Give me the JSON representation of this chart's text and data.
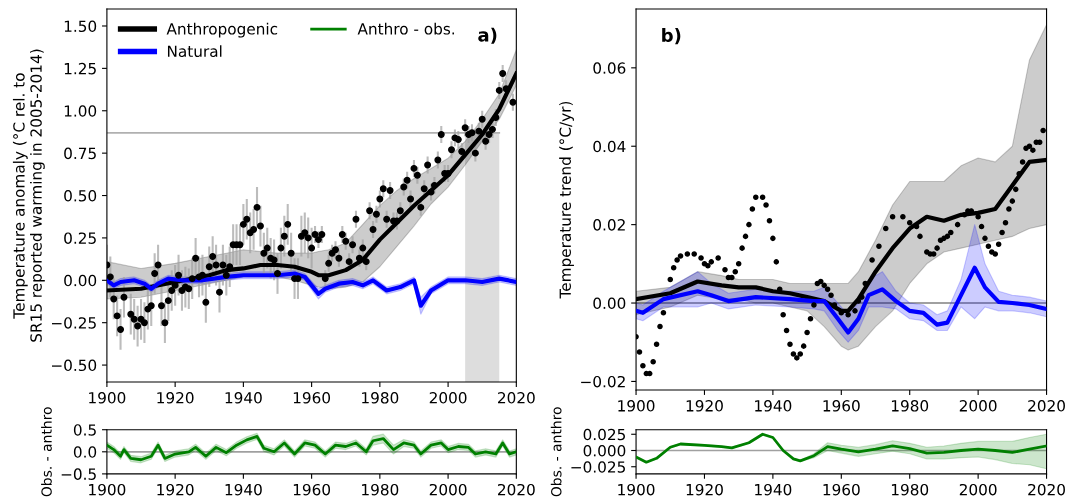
{
  "chart_data": [
    {
      "type": "line",
      "ylabel": "Temperature anomaly (°C rel. to\nSR15 reported warming in 2005-2014)",
      "xlim": [
        1900,
        2020
      ],
      "xticks": [
        1900,
        1920,
        1940,
        1960,
        1980,
        2000,
        2020
      ],
      "ylim": [
        -0.6,
        1.6
      ],
      "yticks": [
        {
          "value": -0.5,
          "label": "−0.50"
        },
        {
          "value": -0.25,
          "label": "−0.25"
        },
        {
          "value": 0,
          "label": "0.00"
        },
        {
          "value": 0.25,
          "label": "0.25"
        },
        {
          "value": 0.5,
          "label": "0.50"
        },
        {
          "value": 0.75,
          "label": "0.75"
        },
        {
          "value": 1.0,
          "label": "1.00"
        },
        {
          "value": 1.25,
          "label": "1.25"
        },
        {
          "value": 1.5,
          "label": "1.50"
        }
      ],
      "legend": "top left",
      "grid": false,
      "annotations": [
        "a)"
      ],
      "ref_lines": [
        {
          "axis": "y",
          "value": 0.87,
          "color": "#b0b0b0"
        }
      ],
      "bands": [
        {
          "axis": "x",
          "from": 2005,
          "to": 2015,
          "color": "#dddddd"
        }
      ],
      "series": [
        {
          "type": "scatter",
          "color": "#000000",
          "marker": "circle",
          "x": [
            1900,
            1901,
            1902,
            1903,
            1904,
            1905,
            1907,
            1908,
            1909,
            1910,
            1911,
            1912,
            1913,
            1914,
            1915,
            1916,
            1917,
            1918,
            1919,
            1920,
            1921,
            1922,
            1923,
            1924,
            1925,
            1926,
            1927,
            1928,
            1929,
            1930,
            1931,
            1932,
            1933,
            1934,
            1935,
            1936,
            1937,
            1938,
            1939,
            1940,
            1941,
            1942,
            1943,
            1944,
            1945,
            1946,
            1947,
            1948,
            1949,
            1950,
            1951,
            1952,
            1953,
            1954,
            1955,
            1956,
            1957,
            1958,
            1959,
            1960,
            1961,
            1962,
            1963,
            1964,
            1965,
            1966,
            1967,
            1968,
            1969,
            1970,
            1971,
            1972,
            1973,
            1974,
            1975,
            1976,
            1977,
            1978,
            1979,
            1980,
            1981,
            1982,
            1983,
            1984,
            1985,
            1986,
            1987,
            1988,
            1989,
            1990,
            1991,
            1992,
            1993,
            1994,
            1995,
            1996,
            1997,
            1998,
            1999,
            2000,
            2001,
            2002,
            2003,
            2004,
            2005,
            2006,
            2007,
            2008,
            2009,
            2010,
            2011,
            2012,
            2013,
            2014,
            2015,
            2016,
            2017,
            2019
          ],
          "values": [
            0.09,
            0.02,
            -0.11,
            -0.21,
            -0.29,
            -0.1,
            -0.2,
            -0.23,
            -0.27,
            -0.23,
            -0.25,
            -0.17,
            -0.15,
            0.04,
            0.09,
            -0.15,
            -0.25,
            -0.12,
            -0.06,
            -0.03,
            0.03,
            -0.06,
            -0.04,
            -0.05,
            0.01,
            0.13,
            0.02,
            0.03,
            -0.13,
            0.08,
            0.14,
            0.09,
            -0.07,
            0.09,
            0.03,
            0.08,
            0.21,
            0.21,
            0.21,
            0.33,
            0.36,
            0.28,
            0.3,
            0.43,
            0.32,
            0.16,
            0.19,
            0.13,
            0.12,
            0.04,
            0.19,
            0.26,
            0.33,
            0.16,
            0.01,
            0.01,
            0.26,
            0.28,
            0.25,
            0.19,
            0.27,
            0.24,
            0.27,
            0.01,
            0.1,
            0.16,
            0.18,
            0.13,
            0.27,
            0.23,
            0.11,
            0.21,
            0.36,
            0.13,
            0.19,
            0.11,
            0.41,
            0.3,
            0.39,
            0.48,
            0.54,
            0.36,
            0.53,
            0.35,
            0.35,
            0.41,
            0.55,
            0.59,
            0.48,
            0.66,
            0.62,
            0.43,
            0.54,
            0.68,
            0.52,
            0.56,
            0.71,
            0.86,
            0.63,
            0.63,
            0.77,
            0.84,
            0.83,
            0.76,
            0.9,
            0.86,
            0.87,
            0.75,
            0.88,
            0.95,
            0.82,
            0.86,
            0.89,
            0.96,
            1.12,
            1.22,
            1.13,
            1.05
          ],
          "errors": [
            0.12,
            0.12,
            0.12,
            0.12,
            0.12,
            0.12,
            0.12,
            0.12,
            0.12,
            0.12,
            0.12,
            0.12,
            0.12,
            0.12,
            0.12,
            0.12,
            0.12,
            0.12,
            0.12,
            0.12,
            0.12,
            0.12,
            0.12,
            0.12,
            0.12,
            0.12,
            0.12,
            0.12,
            0.12,
            0.12,
            0.12,
            0.12,
            0.12,
            0.12,
            0.12,
            0.12,
            0.12,
            0.12,
            0.12,
            0.12,
            0.12,
            0.12,
            0.12,
            0.12,
            0.12,
            0.12,
            0.12,
            0.12,
            0.12,
            0.12,
            0.12,
            0.12,
            0.12,
            0.12,
            0.12,
            0.12,
            0.12,
            0.12,
            0.12,
            0.12,
            0.05,
            0.05,
            0.05,
            0.05,
            0.05,
            0.05,
            0.05,
            0.05,
            0.05,
            0.05,
            0.05,
            0.05,
            0.05,
            0.05,
            0.05,
            0.05,
            0.05,
            0.05,
            0.05,
            0.05,
            0.05,
            0.05,
            0.05,
            0.05,
            0.05,
            0.05,
            0.05,
            0.05,
            0.05,
            0.05,
            0.05,
            0.05,
            0.05,
            0.05,
            0.05,
            0.05,
            0.05,
            0.05,
            0.05,
            0.05,
            0.05,
            0.05,
            0.05,
            0.05,
            0.05,
            0.05,
            0.05,
            0.05,
            0.05,
            0.05,
            0.05,
            0.05,
            0.05,
            0.05,
            0.05,
            0.05,
            0.05,
            0.05
          ]
        },
        {
          "name": "Anthropogenic",
          "color": "#000000",
          "x": [
            1900,
            1910,
            1920,
            1930,
            1935,
            1940,
            1945,
            1950,
            1955,
            1960,
            1962,
            1965,
            1970,
            1975,
            1980,
            1985,
            1990,
            1995,
            2000,
            2005,
            2010,
            2015,
            2020
          ],
          "values": [
            -0.06,
            -0.05,
            -0.01,
            0.03,
            0.06,
            0.07,
            0.09,
            0.09,
            0.08,
            0.05,
            0.03,
            0.03,
            0.06,
            0.12,
            0.24,
            0.34,
            0.44,
            0.53,
            0.62,
            0.74,
            0.86,
            1.01,
            1.22
          ],
          "lower": [
            -0.11,
            -0.1,
            -0.06,
            -0.02,
            0.0,
            0.02,
            0.02,
            0.02,
            0.0,
            -0.03,
            -0.04,
            -0.05,
            -0.04,
            -0.01,
            0.08,
            0.2,
            0.32,
            0.45,
            0.55,
            0.68,
            0.82,
            0.95,
            1.15
          ],
          "upper": [
            0.11,
            0.07,
            0.1,
            0.14,
            0.16,
            0.18,
            0.17,
            0.16,
            0.16,
            0.16,
            0.17,
            0.18,
            0.22,
            0.33,
            0.44,
            0.53,
            0.6,
            0.66,
            0.72,
            0.82,
            0.95,
            1.1,
            1.36
          ]
        },
        {
          "name": "Natural",
          "color": "#0000ff",
          "x": [
            1900,
            1902,
            1904,
            1908,
            1911,
            1913,
            1915,
            1918,
            1922,
            1928,
            1935,
            1940,
            1945,
            1950,
            1955,
            1958,
            1962,
            1964,
            1968,
            1972,
            1975,
            1978,
            1982,
            1986,
            1990,
            1992,
            1995,
            2000,
            2005,
            2010,
            2015,
            2020
          ],
          "values": [
            0.0,
            -0.03,
            -0.01,
            0.0,
            -0.02,
            -0.05,
            -0.02,
            0.01,
            0.0,
            0.0,
            0.02,
            0.03,
            0.03,
            0.03,
            0.04,
            0.02,
            -0.08,
            -0.05,
            -0.02,
            -0.01,
            -0.03,
            0.0,
            -0.06,
            -0.04,
            0.0,
            -0.15,
            -0.06,
            0.0,
            0.0,
            -0.01,
            0.01,
            -0.01
          ],
          "lower": [
            -0.02,
            -0.05,
            -0.03,
            -0.02,
            -0.04,
            -0.07,
            -0.04,
            -0.01,
            -0.02,
            -0.02,
            0.0,
            0.01,
            0.01,
            0.01,
            0.02,
            0.0,
            -0.11,
            -0.07,
            -0.04,
            -0.03,
            -0.05,
            -0.02,
            -0.08,
            -0.06,
            -0.02,
            -0.2,
            -0.08,
            -0.02,
            -0.02,
            -0.03,
            -0.01,
            -0.03
          ],
          "upper": [
            0.02,
            -0.01,
            0.01,
            0.02,
            0.0,
            -0.03,
            0.0,
            0.03,
            0.02,
            0.02,
            0.04,
            0.05,
            0.05,
            0.05,
            0.06,
            0.04,
            -0.05,
            -0.03,
            0.0,
            0.01,
            -0.01,
            0.02,
            -0.04,
            -0.02,
            0.02,
            -0.1,
            -0.04,
            0.02,
            0.02,
            0.01,
            0.03,
            0.01
          ]
        }
      ]
    },
    {
      "type": "line",
      "ylabel": "Temperature trend (°C/yr)",
      "xlim": [
        1900,
        2020
      ],
      "xticks": [
        1900,
        1920,
        1940,
        1960,
        1980,
        2000,
        2020
      ],
      "ylim": [
        -0.0222,
        0.075
      ],
      "yticks": [
        {
          "value": -0.02,
          "label": "−0.02"
        },
        {
          "value": 0,
          "label": "0.00"
        },
        {
          "value": 0.02,
          "label": "0.02"
        },
        {
          "value": 0.04,
          "label": "0.04"
        },
        {
          "value": 0.06,
          "label": "0.06"
        }
      ],
      "grid": false,
      "annotations": [
        "b)"
      ],
      "ref_lines": [
        {
          "axis": "y",
          "value": 0,
          "color": "#808080"
        }
      ],
      "series": [
        {
          "color": "#000000",
          "x": [
            1900,
            1910,
            1918,
            1925,
            1930,
            1935,
            1940,
            1945,
            1950,
            1955,
            1960,
            1962,
            1965,
            1970,
            1975,
            1980,
            1985,
            1990,
            1995,
            2000,
            2005,
            2010,
            2015,
            2020
          ],
          "values": [
            0.001,
            0.0025,
            0.0055,
            0.0045,
            0.004,
            0.004,
            0.003,
            0.0025,
            0.0015,
            0.0005,
            -0.002,
            -0.002,
            0.001,
            0.008,
            0.014,
            0.019,
            0.022,
            0.021,
            0.0225,
            0.023,
            0.024,
            0.03,
            0.036,
            0.0365
          ],
          "lower": [
            -0.003,
            -0.001,
            0.002,
            0.001,
            0.001,
            0.0,
            0.0,
            -0.001,
            -0.002,
            -0.006,
            -0.011,
            -0.012,
            -0.011,
            -0.006,
            -0.002,
            0.005,
            0.01,
            0.013,
            0.014,
            0.015,
            0.016,
            0.017,
            0.019,
            0.02
          ],
          "upper": [
            0.003,
            0.004,
            0.008,
            0.007,
            0.006,
            0.006,
            0.006,
            0.005,
            0.005,
            0.005,
            0.005,
            0.005,
            0.008,
            0.016,
            0.025,
            0.031,
            0.031,
            0.031,
            0.035,
            0.037,
            0.036,
            0.04,
            0.062,
            0.071
          ]
        },
        {
          "color": "#0000ff",
          "x": [
            1900,
            1902,
            1908,
            1918,
            1922,
            1927,
            1935,
            1945,
            1952,
            1955,
            1959,
            1962,
            1965,
            1968,
            1972,
            1976,
            1980,
            1984,
            1988,
            1991,
            1995,
            1999,
            2002,
            2006,
            2010,
            2015,
            2020
          ],
          "values": [
            -0.002,
            -0.0025,
            0.001,
            0.003,
            0.002,
            0.0005,
            0.0015,
            0.001,
            0.0005,
            0.0005,
            -0.004,
            -0.0075,
            -0.004,
            0.002,
            0.0035,
            0.0005,
            -0.002,
            -0.0025,
            -0.0055,
            -0.005,
            0.002,
            0.009,
            0.004,
            0.0003,
            0.0,
            -0.0005,
            -0.0015
          ],
          "lower": [
            -0.004,
            -0.0045,
            -0.001,
            -0.001,
            0.0,
            -0.0015,
            -0.0005,
            -0.001,
            -0.0015,
            -0.002,
            -0.007,
            -0.01,
            -0.007,
            -0.001,
            -0.001,
            -0.0015,
            -0.004,
            -0.0045,
            -0.007,
            -0.007,
            -0.001,
            -0.004,
            -0.001,
            -0.002,
            -0.002,
            -0.0025,
            -0.0035
          ],
          "upper": [
            0.0,
            -0.0005,
            0.003,
            0.008,
            0.005,
            0.0025,
            0.0035,
            0.003,
            0.003,
            0.004,
            0.0,
            -0.003,
            0.0,
            0.006,
            0.008,
            0.003,
            0.0,
            -0.0005,
            -0.003,
            -0.002,
            0.006,
            0.02,
            0.01,
            0.003,
            0.002,
            0.0015,
            0.0005
          ]
        },
        {
          "type": "scatter",
          "color": "#000000",
          "marker": "circle",
          "x": [
            1900,
            1901,
            1902,
            1903,
            1904,
            1905,
            1906,
            1907,
            1908,
            1910,
            1911,
            1912,
            1913,
            1915,
            1917,
            1919,
            1920,
            1921,
            1922,
            1924,
            1926,
            1927,
            1928,
            1929,
            1930,
            1931,
            1932,
            1933,
            1934,
            1935,
            1937,
            1938,
            1939,
            1940,
            1941,
            1942,
            1943,
            1944,
            1945,
            1946,
            1947,
            1948,
            1949,
            1950,
            1951,
            1952,
            1953,
            1954,
            1955,
            1956,
            1957,
            1958,
            1960,
            1962,
            1964,
            1965,
            1966,
            1967,
            1969,
            1971,
            1973,
            1975,
            1978,
            1980,
            1982,
            1983,
            1985,
            1986,
            1987,
            1988,
            1989,
            1990,
            1991,
            1992,
            1994,
            1996,
            1997,
            1998,
            2000,
            2001,
            2002,
            2003,
            2004,
            2005,
            2006,
            2007,
            2008,
            2009,
            2010,
            2011,
            2012,
            2013,
            2014,
            2015,
            2016,
            2017,
            2018,
            2019
          ],
          "values": [
            -0.0086,
            -0.0125,
            -0.016,
            -0.018,
            -0.018,
            -0.015,
            -0.0105,
            -0.006,
            -0.0025,
            0.006,
            0.009,
            0.011,
            0.012,
            0.0125,
            0.0125,
            0.0115,
            0.01,
            0.0095,
            0.0105,
            0.0115,
            0.0085,
            0.0065,
            0.0065,
            0.008,
            0.01,
            0.014,
            0.017,
            0.02,
            0.024,
            0.027,
            0.027,
            0.025,
            0.021,
            0.0165,
            0.0105,
            0.0035,
            -0.003,
            -0.007,
            -0.0105,
            -0.013,
            -0.014,
            -0.013,
            -0.011,
            -0.0075,
            -0.004,
            -0.0005,
            0.005,
            0.0055,
            0.0045,
            0.0035,
            0.002,
            -0.0005,
            -0.0025,
            -0.003,
            -0.002,
            0.0005,
            0.0015,
            0.005,
            0.011,
            0.0145,
            0.019,
            0.022,
            0.022,
            0.0205,
            0.0195,
            0.017,
            0.013,
            0.0125,
            0.0125,
            0.014,
            0.016,
            0.0165,
            0.017,
            0.018,
            0.02,
            0.0225,
            0.0235,
            0.0235,
            0.022,
            0.0195,
            0.0165,
            0.0145,
            0.013,
            0.0125,
            0.015,
            0.018,
            0.0205,
            0.024,
            0.026,
            0.029,
            0.033,
            0.036,
            0.0395,
            0.04,
            0.039,
            0.041,
            0.041,
            0.044
          ]
        }
      ]
    },
    {
      "type": "line",
      "ylabel": "Obs. - anthro",
      "xlim": [
        1900,
        2020
      ],
      "xticks": [
        1900,
        1920,
        1940,
        1960,
        1980,
        2000,
        2020
      ],
      "ylim": [
        -0.5,
        0.5
      ],
      "yticks": [
        {
          "value": -0.5,
          "label": "−0.5"
        },
        {
          "value": 0,
          "label": "0.0"
        },
        {
          "value": 0.5,
          "label": "0.5"
        }
      ],
      "grid": false,
      "ref_lines": [
        {
          "axis": "y",
          "value": 0,
          "color": "#a0a0a0"
        }
      ],
      "series": [
        {
          "name": "Anthro - obs.",
          "color": "#008000",
          "x": [
            1900,
            1902,
            1904,
            1905,
            1907,
            1910,
            1913,
            1915,
            1917,
            1920,
            1924,
            1926,
            1929,
            1932,
            1935,
            1938,
            1941,
            1944,
            1946,
            1949,
            1952,
            1955,
            1958,
            1961,
            1964,
            1967,
            1970,
            1973,
            1976,
            1978,
            1981,
            1984,
            1987,
            1990,
            1992,
            1995,
            1998,
            2000,
            2003,
            2006,
            2008,
            2011,
            2014,
            2016,
            2018,
            2020
          ],
          "values": [
            0.15,
            0.05,
            -0.1,
            0.05,
            -0.15,
            -0.18,
            -0.1,
            0.15,
            -0.15,
            -0.05,
            0.0,
            0.1,
            -0.1,
            0.1,
            -0.02,
            0.15,
            0.27,
            0.35,
            0.08,
            0.0,
            0.2,
            -0.05,
            0.2,
            0.15,
            -0.05,
            0.15,
            0.12,
            0.2,
            0.0,
            0.25,
            0.3,
            0.05,
            0.2,
            0.15,
            -0.05,
            0.15,
            0.2,
            0.05,
            0.12,
            0.1,
            -0.05,
            0.0,
            -0.05,
            0.2,
            -0.05,
            0.0
          ],
          "lower": [
            0.08,
            -0.02,
            -0.17,
            -0.02,
            -0.22,
            -0.25,
            -0.17,
            0.08,
            -0.22,
            -0.12,
            -0.07,
            0.03,
            -0.17,
            0.03,
            -0.09,
            0.08,
            0.2,
            0.28,
            0.01,
            -0.07,
            0.13,
            -0.12,
            0.13,
            0.08,
            -0.12,
            0.08,
            0.05,
            0.13,
            -0.07,
            0.15,
            0.2,
            -0.05,
            0.12,
            0.08,
            -0.12,
            0.08,
            0.13,
            -0.02,
            0.05,
            0.03,
            -0.12,
            -0.07,
            -0.12,
            0.13,
            -0.12,
            -0.07
          ],
          "upper": [
            0.22,
            0.12,
            -0.03,
            0.12,
            -0.08,
            -0.11,
            -0.03,
            0.22,
            -0.08,
            0.02,
            0.07,
            0.17,
            -0.03,
            0.17,
            0.05,
            0.22,
            0.34,
            0.42,
            0.15,
            0.07,
            0.27,
            0.02,
            0.27,
            0.22,
            0.02,
            0.22,
            0.19,
            0.27,
            0.07,
            0.35,
            0.4,
            0.15,
            0.28,
            0.22,
            0.02,
            0.22,
            0.27,
            0.12,
            0.19,
            0.17,
            0.02,
            0.07,
            0.02,
            0.27,
            0.02,
            0.07
          ]
        }
      ]
    },
    {
      "type": "line",
      "ylabel": "Obs. - anthro",
      "xlim": [
        1900,
        2020
      ],
      "xticks": [
        1900,
        1920,
        1940,
        1960,
        1980,
        2000,
        2020
      ],
      "ylim": [
        -0.036,
        0.032
      ],
      "yticks": [
        {
          "value": -0.025,
          "label": "−0.025"
        },
        {
          "value": 0,
          "label": "0.000"
        },
        {
          "value": 0.025,
          "label": "0.025"
        }
      ],
      "grid": false,
      "ref_lines": [
        {
          "axis": "y",
          "value": 0,
          "color": "#a0a0a0"
        }
      ],
      "series": [
        {
          "color": "#008000",
          "x": [
            1900,
            1903,
            1906,
            1910,
            1913,
            1920,
            1925,
            1928,
            1933,
            1937,
            1940,
            1943,
            1946,
            1948,
            1952,
            1956,
            1960,
            1965,
            1970,
            1975,
            1980,
            1985,
            1990,
            1995,
            2000,
            2005,
            2010,
            2015,
            2020
          ],
          "values": [
            -0.01,
            -0.018,
            -0.012,
            0.005,
            0.01,
            0.008,
            0.006,
            0.004,
            0.012,
            0.025,
            0.02,
            0.0,
            -0.013,
            -0.016,
            -0.008,
            0.006,
            0.002,
            -0.002,
            0.002,
            0.007,
            0.003,
            -0.004,
            -0.003,
            0.0,
            0.002,
            0.0,
            -0.003,
            0.002,
            0.007
          ],
          "lower": [
            -0.011,
            -0.019,
            -0.013,
            0.004,
            0.009,
            0.007,
            0.005,
            0.003,
            0.011,
            0.024,
            0.019,
            -0.001,
            -0.014,
            -0.017,
            -0.011,
            0.0,
            -0.004,
            -0.009,
            -0.005,
            -0.001,
            -0.005,
            -0.013,
            -0.013,
            -0.011,
            -0.01,
            -0.014,
            -0.02,
            -0.022,
            -0.028
          ],
          "upper": [
            -0.009,
            -0.017,
            -0.011,
            0.006,
            0.011,
            0.009,
            0.007,
            0.005,
            0.013,
            0.026,
            0.021,
            0.001,
            -0.012,
            -0.015,
            -0.005,
            0.012,
            0.008,
            0.005,
            0.009,
            0.015,
            0.011,
            0.005,
            0.007,
            0.011,
            0.014,
            0.014,
            0.014,
            0.02,
            0.025
          ]
        }
      ]
    }
  ]
}
